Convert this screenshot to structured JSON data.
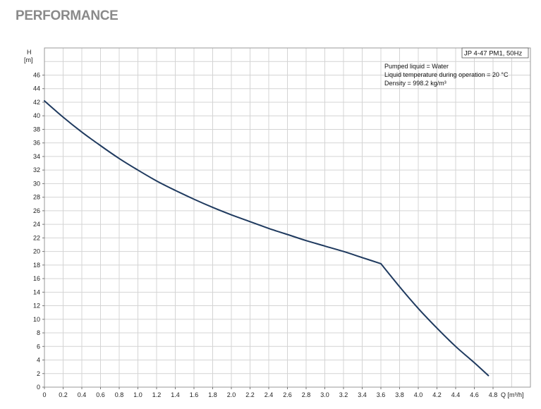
{
  "page": {
    "heading": "PERFORMANCE"
  },
  "chart_data": {
    "type": "line",
    "title": "",
    "model_label": "JP 4-47 PM1, 50Hz",
    "notes": [
      "Pumped liquid = Water",
      "Liquid temperature during operation = 20 °C",
      "Density = 998.2 kg/m³"
    ],
    "ylabel": {
      "symbol": "H",
      "unit": "[m]"
    },
    "xlabel": "Q [m³/h]",
    "xlim": [
      0,
      5.2
    ],
    "ylim": [
      0,
      50
    ],
    "x_ticks": [
      0,
      0.2,
      0.4,
      0.6,
      0.8,
      1.0,
      1.2,
      1.4,
      1.6,
      1.8,
      2.0,
      2.2,
      2.4,
      2.6,
      2.8,
      3.0,
      3.2,
      3.4,
      3.6,
      3.8,
      4.0,
      4.2,
      4.4,
      4.6,
      4.8
    ],
    "x_tick_labels": [
      "0",
      "0.2",
      "0.4",
      "0.6",
      "0.8",
      "1.0",
      "1.2",
      "1.4",
      "1.6",
      "1.8",
      "2.0",
      "2.2",
      "2.4",
      "2.6",
      "2.8",
      "3.0",
      "3.2",
      "3.4",
      "3.6",
      "3.8",
      "4.0",
      "4.2",
      "4.4",
      "4.6",
      "4.8"
    ],
    "y_ticks": [
      0,
      2,
      4,
      6,
      8,
      10,
      12,
      14,
      16,
      18,
      20,
      22,
      24,
      26,
      28,
      30,
      32,
      34,
      36,
      38,
      40,
      42,
      44,
      46
    ],
    "grid": true,
    "series": [
      {
        "name": "",
        "color": "#1f3a5f",
        "x": [
          0,
          0.2,
          0.4,
          0.6,
          0.8,
          1.0,
          1.2,
          1.4,
          1.6,
          1.8,
          2.0,
          2.2,
          2.4,
          2.6,
          2.8,
          3.0,
          3.2,
          3.4,
          3.6,
          3.8,
          4.0,
          4.2,
          4.4,
          4.6,
          4.75
        ],
        "y": [
          42.2,
          39.8,
          37.6,
          35.6,
          33.7,
          32.0,
          30.4,
          29.0,
          27.7,
          26.5,
          25.4,
          24.4,
          23.4,
          22.5,
          21.6,
          20.8,
          20.0,
          19.1,
          18.2,
          14.8,
          11.6,
          8.7,
          6.0,
          3.6,
          1.7
        ]
      }
    ]
  }
}
